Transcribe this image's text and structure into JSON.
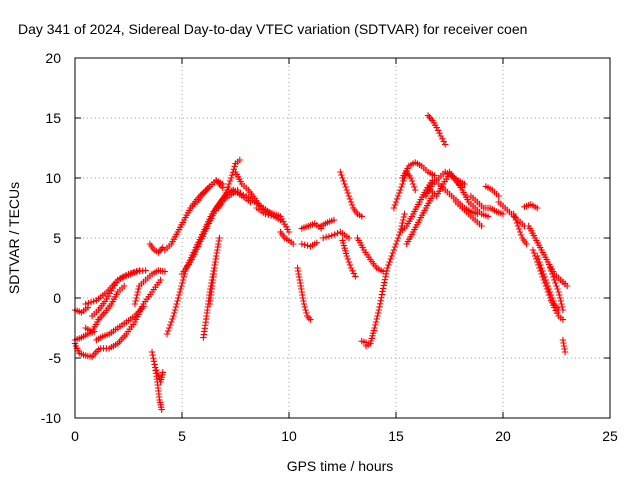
{
  "chart_data": {
    "type": "scatter",
    "title": "Day 341 of 2024, Sidereal Day-to-day VTEC variation (SDTVAR) for receiver coen",
    "xlabel": "GPS time / hours",
    "ylabel": "SDTVAR / TECUs",
    "xlim": [
      0,
      25
    ],
    "ylim": [
      -10,
      20
    ],
    "xticks": [
      0,
      5,
      10,
      15,
      20,
      25
    ],
    "yticks": [
      -10,
      -5,
      0,
      5,
      10,
      15,
      20
    ],
    "grid": true,
    "marker": "+",
    "color": "#ff0000",
    "segments": [
      {
        "x": [
          0.0,
          0.3,
          0.6
        ],
        "y": [
          -1.0,
          -1.2,
          -0.8
        ]
      },
      {
        "x": [
          0.0,
          0.2,
          0.5,
          0.8,
          1.1
        ],
        "y": [
          -3.8,
          -4.6,
          -4.8,
          -4.9,
          -4.3
        ]
      },
      {
        "x": [
          0.0,
          0.3,
          0.6,
          0.9
        ],
        "y": [
          -3.5,
          -3.3,
          -3.0,
          -2.8
        ]
      },
      {
        "x": [
          0.5,
          1.0,
          1.5,
          2.0,
          2.5,
          3.0
        ],
        "y": [
          -0.5,
          -0.2,
          0.5,
          1.5,
          2.0,
          2.3
        ]
      },
      {
        "x": [
          0.5,
          0.8,
          1.1,
          1.4,
          1.7,
          2.0,
          2.3
        ],
        "y": [
          -2.5,
          -2.8,
          -1.8,
          -1.2,
          -0.5,
          0.5,
          1.0
        ]
      },
      {
        "x": [
          0.8,
          1.1,
          1.4,
          1.7,
          2.0,
          2.3,
          2.6,
          2.9,
          3.3
        ],
        "y": [
          -1.5,
          -1.0,
          -0.3,
          0.6,
          1.5,
          1.8,
          2.0,
          2.2,
          2.3
        ]
      },
      {
        "x": [
          1.0,
          1.3,
          1.6,
          2.0,
          2.4,
          2.8,
          3.2
        ],
        "y": [
          -3.5,
          -3.2,
          -3.0,
          -2.5,
          -2.0,
          -1.5,
          -0.7
        ]
      },
      {
        "x": [
          1.2,
          1.6,
          2.0,
          2.4,
          2.8,
          3.2,
          3.6,
          4.0
        ],
        "y": [
          -4.2,
          -4.2,
          -3.8,
          -3.0,
          -2.0,
          -0.5,
          0.5,
          1.5
        ]
      },
      {
        "x": [
          2.8,
          3.0,
          3.3,
          3.6,
          3.9,
          4.2
        ],
        "y": [
          -0.5,
          1.0,
          1.5,
          2.0,
          2.3,
          2.2
        ]
      },
      {
        "x": [
          3.5,
          3.7,
          3.9,
          4.1
        ],
        "y": [
          4.5,
          4.0,
          3.8,
          4.2
        ]
      },
      {
        "x": [
          3.6,
          3.75,
          3.85,
          3.95,
          4.05
        ],
        "y": [
          -4.5,
          -5.8,
          -7.0,
          -8.5,
          -9.3
        ]
      },
      {
        "x": [
          3.8,
          3.9,
          4.0,
          4.1
        ],
        "y": [
          -6.0,
          -6.5,
          -7.0,
          -6.2
        ]
      },
      {
        "x": [
          4.3,
          4.6,
          4.9,
          5.2,
          5.6,
          6.0,
          6.4,
          6.8,
          7.2,
          7.6
        ],
        "y": [
          -3.0,
          -1.5,
          0.5,
          2.5,
          4.0,
          5.5,
          7.0,
          8.0,
          8.5,
          9.0
        ]
      },
      {
        "x": [
          4.2,
          4.5,
          4.8,
          5.1,
          5.4,
          5.7,
          6.0,
          6.3,
          6.6,
          6.9
        ],
        "y": [
          4.0,
          4.5,
          5.5,
          6.5,
          7.5,
          8.2,
          8.8,
          9.3,
          9.8,
          9.5
        ]
      },
      {
        "x": [
          5.0,
          5.4,
          5.8,
          6.2,
          6.6,
          7.0,
          7.4,
          7.8,
          8.2
        ],
        "y": [
          2.0,
          3.0,
          4.5,
          6.0,
          7.5,
          8.5,
          9.0,
          8.5,
          8.0
        ]
      },
      {
        "x": [
          5.4,
          5.7,
          6.0,
          6.3,
          6.6,
          6.9
        ],
        "y": [
          7.5,
          8.0,
          8.7,
          9.3,
          9.8,
          9.2
        ]
      },
      {
        "x": [
          6.0,
          6.15,
          6.3,
          6.45,
          6.6
        ],
        "y": [
          -3.3,
          -1.5,
          0.5,
          2.0,
          3.5
        ]
      },
      {
        "x": [
          6.3,
          6.45,
          6.6,
          6.75
        ],
        "y": [
          -0.5,
          1.5,
          3.5,
          5.0
        ]
      },
      {
        "x": [
          6.7,
          6.9,
          7.1,
          7.3,
          7.5,
          7.7
        ],
        "y": [
          7.5,
          8.0,
          9.0,
          10.0,
          11.2,
          11.5
        ]
      },
      {
        "x": [
          6.8,
          7.2,
          7.6,
          8.0,
          8.4,
          8.8,
          9.2
        ],
        "y": [
          8.0,
          9.0,
          8.8,
          8.5,
          8.0,
          7.5,
          7.0
        ]
      },
      {
        "x": [
          7.5,
          7.8,
          8.1,
          8.4,
          8.7,
          9.0,
          9.3,
          9.6,
          10.0
        ],
        "y": [
          10.5,
          9.5,
          9.0,
          8.3,
          7.5,
          7.2,
          7.0,
          6.8,
          5.5
        ]
      },
      {
        "x": [
          8.5,
          8.9,
          9.3,
          9.6
        ],
        "y": [
          7.5,
          7.0,
          6.8,
          6.5
        ]
      },
      {
        "x": [
          9.6,
          9.8,
          10.0,
          10.2
        ],
        "y": [
          5.5,
          5.0,
          4.8,
          4.5
        ]
      },
      {
        "x": [
          10.4,
          10.55,
          10.7,
          10.85,
          11.0
        ],
        "y": [
          2.5,
          1.0,
          -0.5,
          -1.5,
          -1.8
        ]
      },
      {
        "x": [
          10.6,
          10.9,
          11.2,
          11.5
        ],
        "y": [
          5.8,
          6.0,
          6.2,
          5.8
        ]
      },
      {
        "x": [
          10.6,
          11.0,
          11.3
        ],
        "y": [
          4.5,
          4.3,
          4.6
        ]
      },
      {
        "x": [
          11.5,
          11.8,
          12.1
        ],
        "y": [
          6.0,
          6.3,
          6.5
        ]
      },
      {
        "x": [
          11.6,
          12.0,
          12.4,
          12.8
        ],
        "y": [
          5.0,
          5.2,
          5.5,
          5.0
        ]
      },
      {
        "x": [
          12.5,
          12.7,
          12.9,
          13.1
        ],
        "y": [
          4.8,
          3.5,
          2.5,
          1.8
        ]
      },
      {
        "x": [
          12.4,
          12.6,
          12.8,
          13.0,
          13.2,
          13.4
        ],
        "y": [
          10.5,
          9.5,
          8.5,
          7.5,
          7.0,
          6.8
        ]
      },
      {
        "x": [
          13.2,
          13.5,
          13.8,
          14.1,
          14.4
        ],
        "y": [
          5.0,
          4.0,
          3.2,
          2.5,
          2.2
        ]
      },
      {
        "x": [
          13.6,
          13.8,
          14.0,
          14.2,
          14.4,
          14.6,
          14.8
        ],
        "y": [
          -4.0,
          -3.8,
          -2.5,
          -1.0,
          0.8,
          2.5,
          3.5
        ]
      },
      {
        "x": [
          13.4,
          13.6
        ],
        "y": [
          -3.6,
          -3.7
        ]
      },
      {
        "x": [
          14.6,
          14.8,
          15.0,
          15.2,
          15.4
        ],
        "y": [
          2.5,
          3.5,
          4.5,
          5.5,
          7.0
        ]
      },
      {
        "x": [
          14.9,
          15.1,
          15.3,
          15.5,
          15.7,
          15.9
        ],
        "y": [
          7.5,
          8.5,
          9.5,
          10.5,
          10.0,
          9.0
        ]
      },
      {
        "x": [
          15.2,
          15.5,
          15.8,
          16.1,
          16.4,
          16.7
        ],
        "y": [
          5.5,
          6.0,
          7.0,
          8.0,
          9.0,
          9.8
        ]
      },
      {
        "x": [
          15.3,
          15.6,
          15.9,
          16.2,
          16.5,
          16.8
        ],
        "y": [
          10.0,
          11.0,
          11.3,
          11.0,
          10.5,
          10.2
        ]
      },
      {
        "x": [
          15.5,
          15.8,
          16.1,
          16.4,
          16.7
        ],
        "y": [
          4.5,
          5.5,
          6.5,
          7.5,
          8.5
        ]
      },
      {
        "x": [
          16.5,
          16.7,
          16.9,
          17.1,
          17.3
        ],
        "y": [
          15.2,
          14.8,
          14.2,
          13.5,
          12.8
        ]
      },
      {
        "x": [
          16.4,
          16.7,
          17.0,
          17.3,
          17.6,
          17.9,
          18.2
        ],
        "y": [
          8.5,
          9.5,
          10.0,
          10.5,
          10.2,
          9.8,
          9.5
        ]
      },
      {
        "x": [
          16.6,
          16.9,
          17.2,
          17.5,
          17.8,
          18.1
        ],
        "y": [
          9.0,
          8.5,
          9.5,
          10.3,
          9.8,
          9.2
        ]
      },
      {
        "x": [
          17.0,
          17.3,
          17.6,
          17.9,
          18.2,
          18.5,
          18.8
        ],
        "y": [
          9.5,
          9.0,
          8.5,
          8.0,
          7.5,
          7.2,
          7.0
        ]
      },
      {
        "x": [
          17.5,
          17.8,
          18.1,
          18.4,
          18.7,
          19.0,
          19.3
        ],
        "y": [
          10.5,
          9.8,
          9.0,
          8.0,
          7.5,
          7.0,
          6.8
        ]
      },
      {
        "x": [
          17.8,
          18.1,
          18.4,
          18.7,
          19.0
        ],
        "y": [
          8.0,
          7.5,
          7.0,
          6.5,
          6.0
        ]
      },
      {
        "x": [
          18.5,
          18.8,
          19.1,
          19.4,
          19.7,
          20.0
        ],
        "y": [
          8.5,
          8.0,
          7.5,
          7.5,
          7.2,
          7.0
        ]
      },
      {
        "x": [
          19.2,
          19.5,
          19.8
        ],
        "y": [
          9.3,
          9.0,
          8.5
        ]
      },
      {
        "x": [
          19.8,
          20.1,
          20.4,
          20.7,
          21.0
        ],
        "y": [
          8.0,
          7.5,
          7.0,
          6.5,
          6.0
        ]
      },
      {
        "x": [
          20.5,
          20.7,
          20.9,
          21.1
        ],
        "y": [
          7.0,
          6.0,
          5.0,
          4.5
        ]
      },
      {
        "x": [
          21.0,
          21.3,
          21.6
        ],
        "y": [
          7.6,
          7.8,
          7.5
        ]
      },
      {
        "x": [
          21.2,
          21.5,
          21.8,
          22.1,
          22.4,
          22.7,
          23.0
        ],
        "y": [
          6.0,
          5.0,
          4.0,
          3.0,
          2.0,
          1.5,
          1.0
        ]
      },
      {
        "x": [
          21.4,
          21.6,
          21.8,
          22.0,
          22.2,
          22.4,
          22.6,
          22.8
        ],
        "y": [
          4.0,
          3.0,
          2.0,
          1.0,
          0.0,
          -0.8,
          -1.5,
          -1.8
        ]
      },
      {
        "x": [
          21.6,
          21.8,
          22.0,
          22.2,
          22.4,
          22.6
        ],
        "y": [
          3.5,
          2.5,
          1.5,
          0.5,
          -0.5,
          -1.0
        ]
      },
      {
        "x": [
          22.2,
          22.4,
          22.6,
          22.8
        ],
        "y": [
          2.5,
          1.5,
          0.5,
          -1.0
        ]
      },
      {
        "x": [
          22.8,
          22.85,
          22.9
        ],
        "y": [
          -3.5,
          -4.0,
          -4.5
        ]
      },
      {
        "x": [
          22.7,
          22.9
        ],
        "y": [
          1.5,
          1.2
        ]
      }
    ]
  }
}
